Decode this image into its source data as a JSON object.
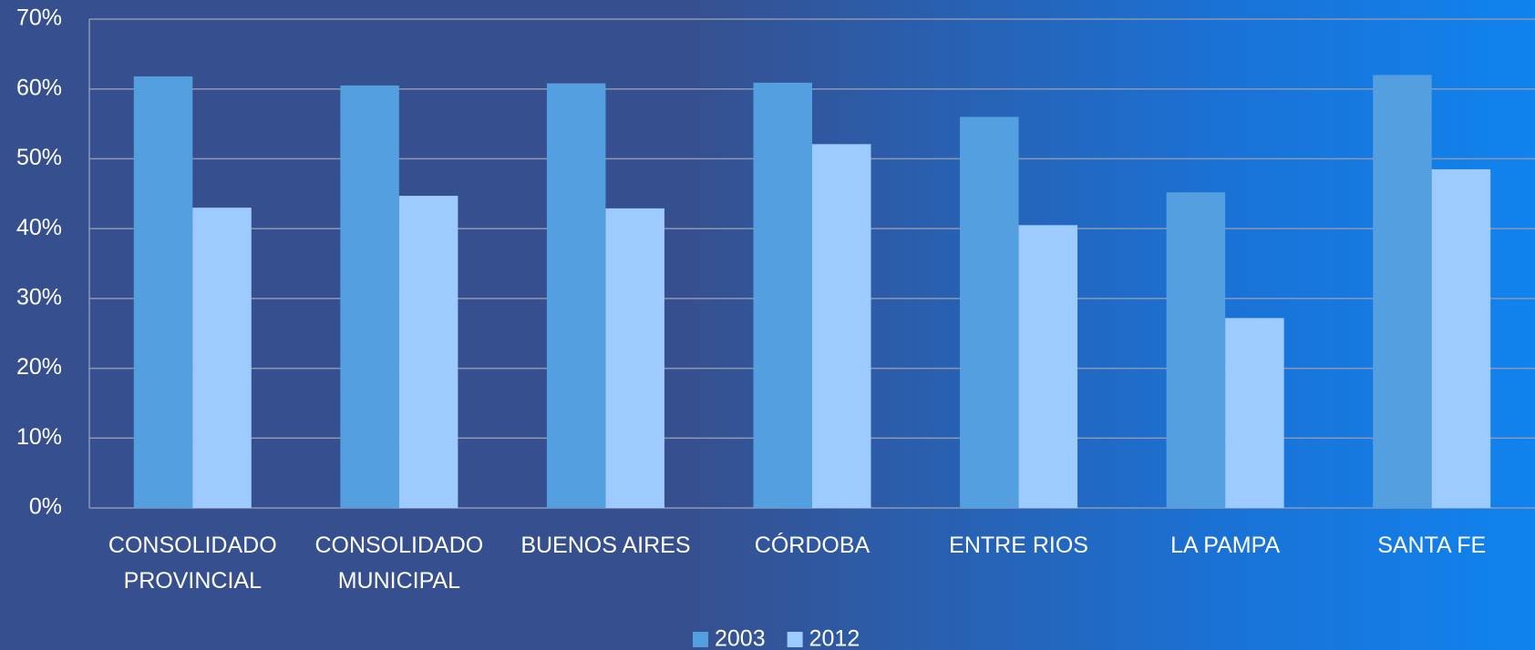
{
  "chart_data": {
    "type": "bar",
    "categories": [
      "CONSOLIDADO PROVINCIAL",
      "CONSOLIDADO MUNICIPAL",
      "BUENOS AIRES",
      "CÓRDOBA",
      "ENTRE RIOS",
      "LA PAMPA",
      "SANTA FE"
    ],
    "series": [
      {
        "name": "2003",
        "color": "#539fe0",
        "values": [
          61.8,
          60.5,
          60.8,
          60.9,
          56.0,
          45.2,
          62.0
        ]
      },
      {
        "name": "2012",
        "color": "#9dcaff",
        "values": [
          43.0,
          44.7,
          42.9,
          52.1,
          40.5,
          27.2,
          48.5
        ]
      }
    ],
    "ylim": [
      0,
      70
    ],
    "yticks": [
      {
        "value": 0,
        "label": "0%"
      },
      {
        "value": 10,
        "label": "10%"
      },
      {
        "value": 20,
        "label": "20%"
      },
      {
        "value": 30,
        "label": "30%"
      },
      {
        "value": 40,
        "label": "40%"
      },
      {
        "value": 50,
        "label": "50%"
      },
      {
        "value": 60,
        "label": "60%"
      },
      {
        "value": 70,
        "label": "70%"
      }
    ],
    "grid": true,
    "legend": "bottom"
  }
}
